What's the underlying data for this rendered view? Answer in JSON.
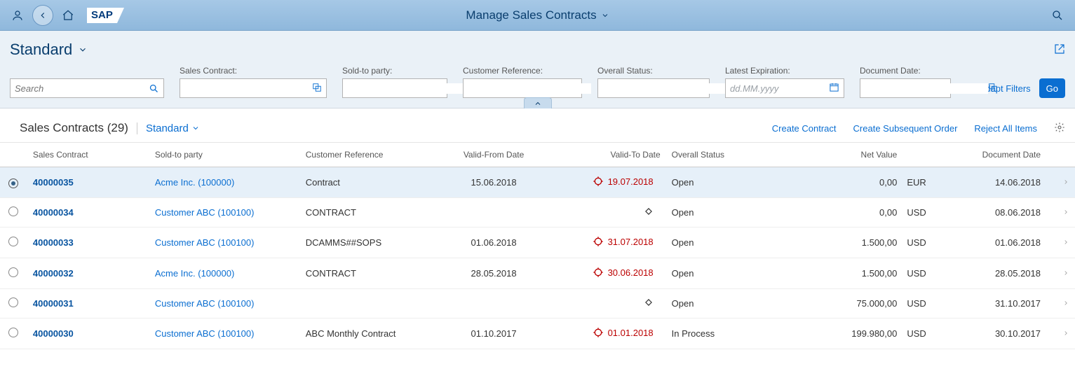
{
  "shell": {
    "title": "Manage Sales Contracts"
  },
  "variant": {
    "title": "Standard"
  },
  "filters": {
    "search_placeholder": "Search",
    "groups": [
      {
        "label": "Sales Contract:",
        "type": "valuehelp"
      },
      {
        "label": "Sold-to party:",
        "type": "valuehelp"
      },
      {
        "label": "Customer Reference:",
        "type": "plain"
      },
      {
        "label": "Overall Status:",
        "type": "select"
      },
      {
        "label": "Latest Expiration:",
        "type": "date",
        "placeholder": "dd.MM.yyyy"
      },
      {
        "label": "Document Date:",
        "type": "valuehelp"
      }
    ],
    "adapt_label": "Adapt Filters",
    "go_label": "Go"
  },
  "content": {
    "title": "Sales Contracts (29)",
    "variant": "Standard",
    "actions": [
      "Create Contract",
      "Create Subsequent Order",
      "Reject All Items"
    ]
  },
  "table": {
    "columns": [
      "Sales Contract",
      "Sold-to party",
      "Customer Reference",
      "Valid-From Date",
      "Valid-To Date",
      "Overall Status",
      "Net Value",
      "Document Date"
    ],
    "rows": [
      {
        "selected": true,
        "contract": "40000035",
        "sold": "Acme Inc. (100000)",
        "ref": "Contract",
        "vfrom": "15.06.2018",
        "vto": "19.07.2018",
        "vto_icon": "alert",
        "status": "Open",
        "net": "0,00",
        "cur": "EUR",
        "ddate": "14.06.2018"
      },
      {
        "selected": false,
        "contract": "40000034",
        "sold": "Customer ABC (100100)",
        "ref": "CONTRACT",
        "vfrom": "",
        "vto": "",
        "vto_icon": "diamond",
        "status": "Open",
        "net": "0,00",
        "cur": "USD",
        "ddate": "08.06.2018"
      },
      {
        "selected": false,
        "contract": "40000033",
        "sold": "Customer ABC (100100)",
        "ref": "DCAMMS##SOPS",
        "vfrom": "01.06.2018",
        "vto": "31.07.2018",
        "vto_icon": "alert",
        "status": "Open",
        "net": "1.500,00",
        "cur": "USD",
        "ddate": "01.06.2018"
      },
      {
        "selected": false,
        "contract": "40000032",
        "sold": "Acme Inc. (100000)",
        "ref": "CONTRACT",
        "vfrom": "28.05.2018",
        "vto": "30.06.2018",
        "vto_icon": "alert",
        "status": "Open",
        "net": "1.500,00",
        "cur": "USD",
        "ddate": "28.05.2018"
      },
      {
        "selected": false,
        "contract": "40000031",
        "sold": "Customer ABC (100100)",
        "ref": "",
        "vfrom": "",
        "vto": "",
        "vto_icon": "diamond",
        "status": "Open",
        "net": "75.000,00",
        "cur": "USD",
        "ddate": "31.10.2017"
      },
      {
        "selected": false,
        "contract": "40000030",
        "sold": "Customer ABC (100100)",
        "ref": "ABC Monthly Contract",
        "vfrom": "01.10.2017",
        "vto": "01.01.2018",
        "vto_icon": "alert",
        "status": "In Process",
        "net": "199.980,00",
        "cur": "USD",
        "ddate": "30.10.2017"
      }
    ]
  },
  "colors": {
    "header_bg": "#a6c8e6",
    "link": "#0a6ed1",
    "alert": "#b00"
  }
}
